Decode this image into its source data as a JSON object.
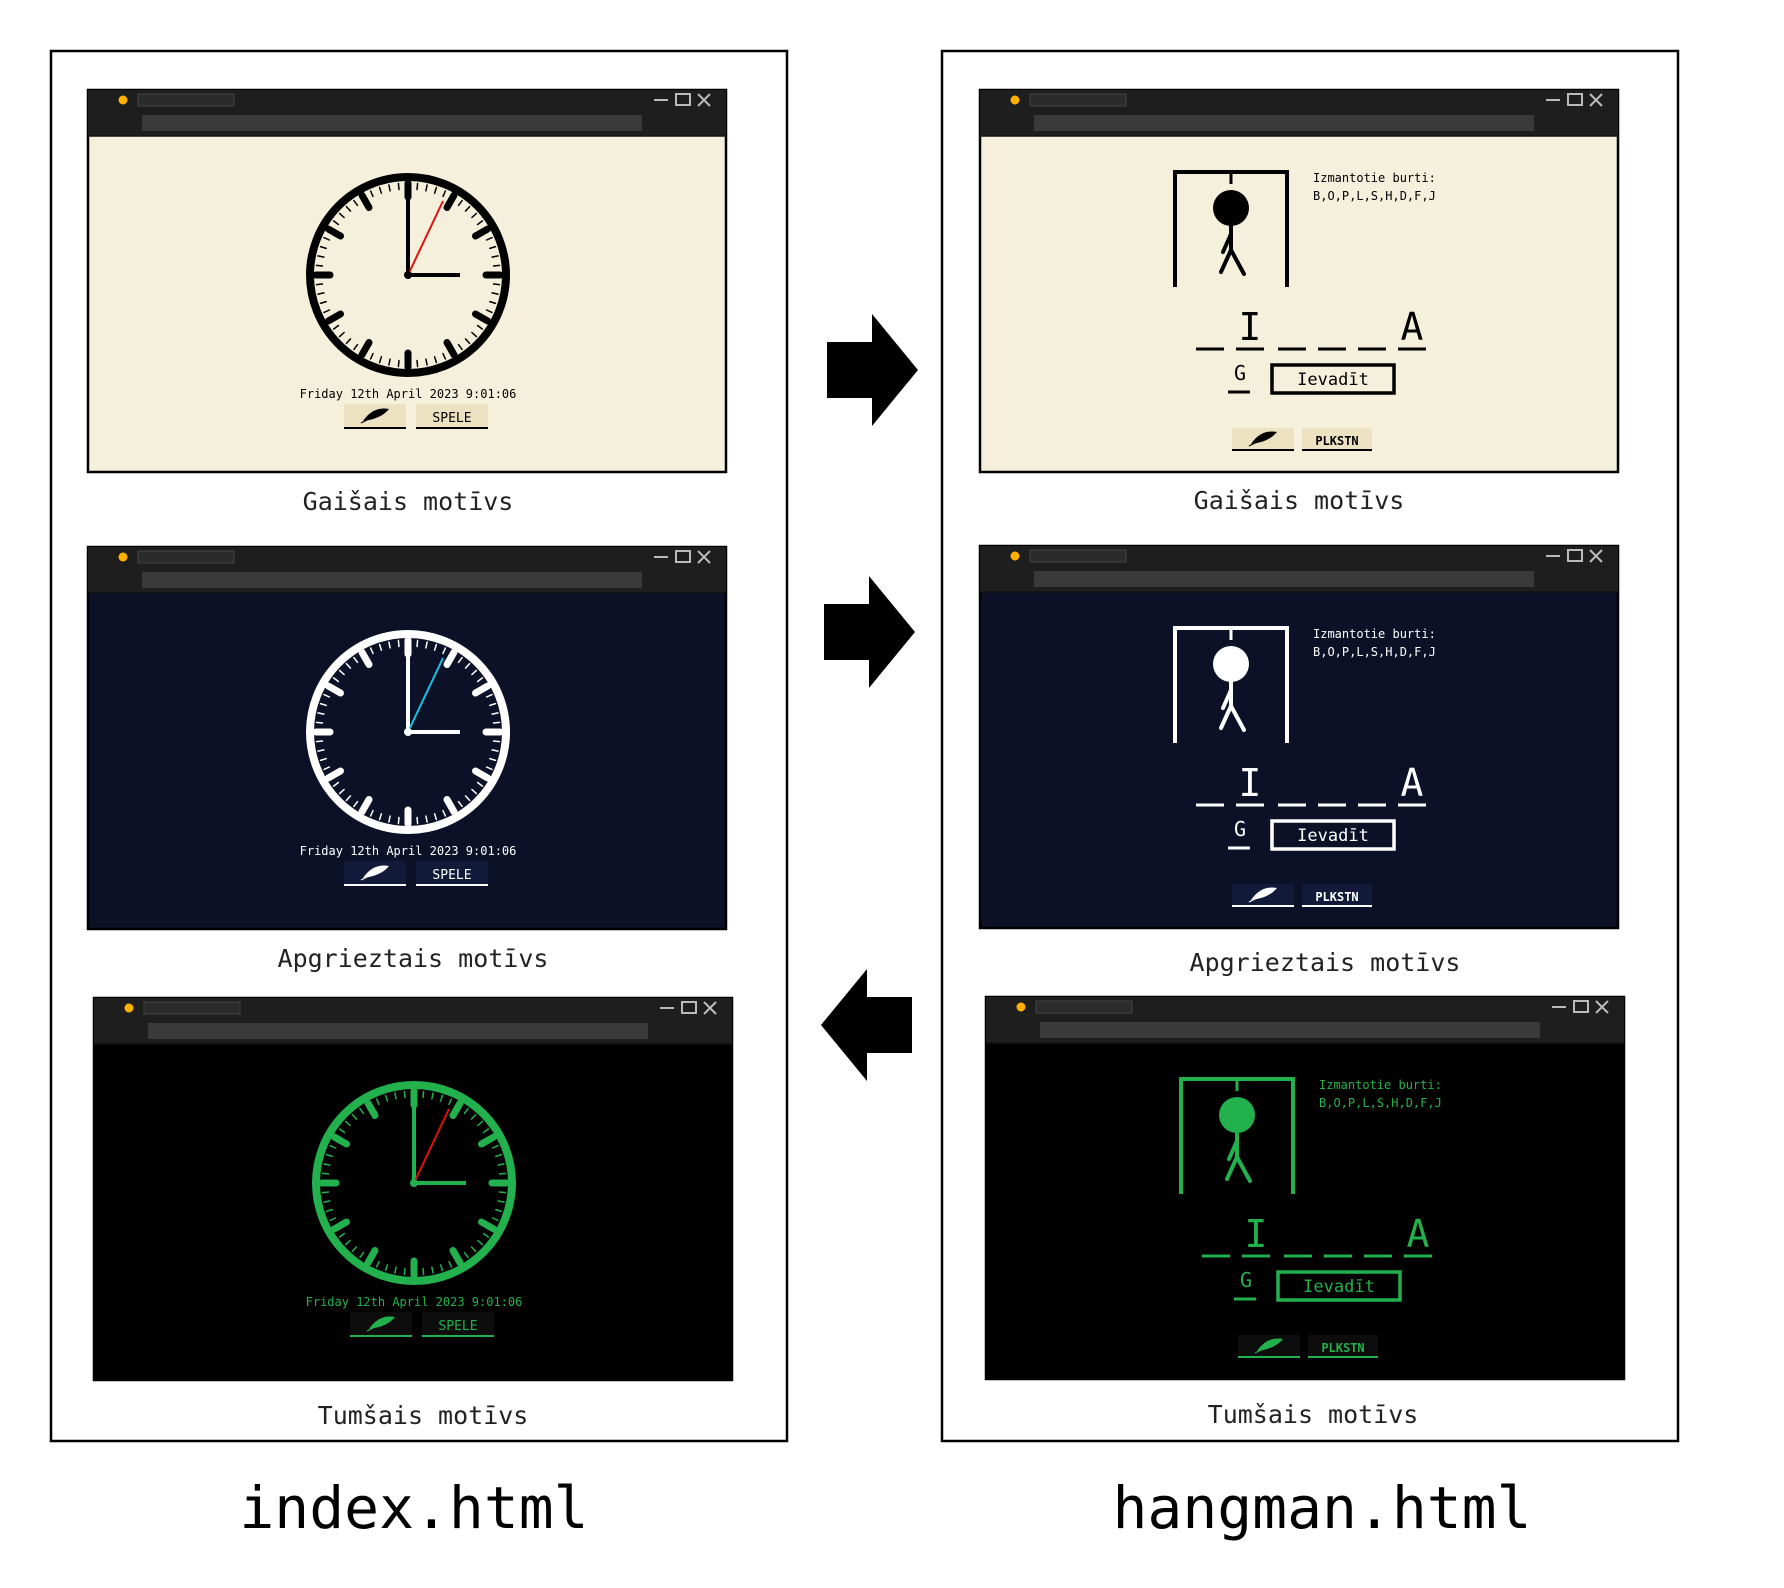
{
  "files": [
    {
      "name": "index.html",
      "kind": "clock"
    },
    {
      "name": "hangman.html",
      "kind": "hangman"
    }
  ],
  "themes": [
    {
      "caption": "Gaišais motīvs",
      "bg": "#f5f0dc",
      "fg": "#000000",
      "accent": "#e01010"
    },
    {
      "caption": "Apgrieztais motīvs",
      "bg": "#0c1128",
      "fg": "#ffffff",
      "accent": "#19c3e6"
    },
    {
      "caption": "Tumšais motīvs",
      "bg": "#000000",
      "fg": "#22b14c",
      "accent": "#e01010"
    }
  ],
  "clock_page": {
    "datetime": "Friday 12th April 2023 9:01:06",
    "game_button": "SPELE",
    "theme_icon": "feather-icon"
  },
  "hangman_page": {
    "used_label": "Izmantotie burti:",
    "used_letters": "B,O,P,L,S,H,D,F,J",
    "word_letters": [
      "",
      "I",
      "",
      "",
      "",
      "A"
    ],
    "input_value": "G",
    "enter_button": "Ievadīt",
    "clock_button": "PLKSTN",
    "theme_icon": "feather-icon"
  },
  "transitions": [
    {
      "from": "index.html",
      "to": "hangman.html",
      "theme": "Gaišais motīvs",
      "direction": "right"
    },
    {
      "from": "index.html",
      "to": "hangman.html",
      "theme": "Apgrieztais motīvs",
      "direction": "right"
    },
    {
      "from": "hangman.html",
      "to": "index.html",
      "theme": "Tumšais motīvs",
      "direction": "left"
    }
  ],
  "window_chrome": {
    "title_bar": "#1e1e1e",
    "address_bar": "#3a3a3a",
    "dot": "#ffb000"
  }
}
